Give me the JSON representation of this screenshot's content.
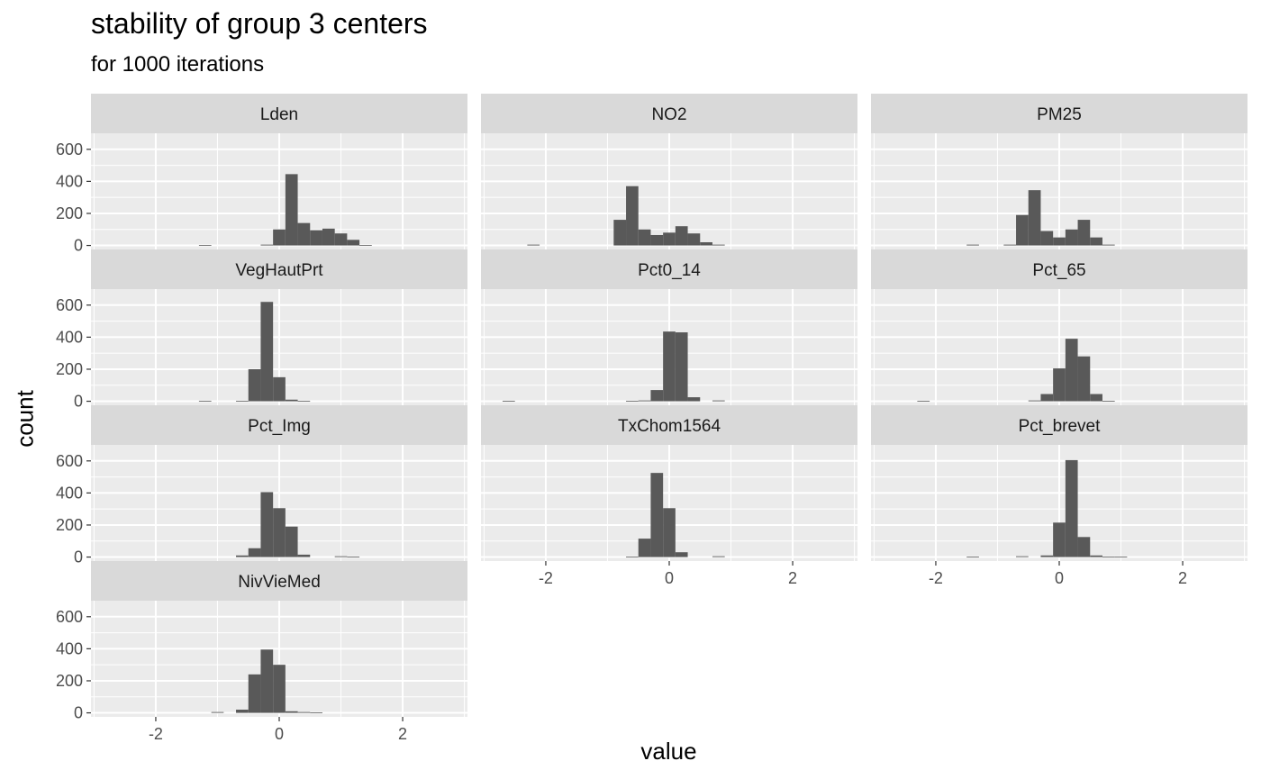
{
  "chart_data": {
    "type": "bar",
    "title": "stability of group 3 centers",
    "subtitle": "for 1000 iterations",
    "xlabel": "value",
    "ylabel": "count",
    "xlim": [
      -3.05,
      3.05
    ],
    "ylim": [
      -25,
      700
    ],
    "x_ticks": [
      -2,
      0,
      2
    ],
    "y_ticks": [
      0,
      200,
      400,
      600
    ],
    "bin_width": 0.2,
    "grid": true,
    "panels": [
      {
        "name": "Lden",
        "bins": [
          {
            "x": -1.2,
            "count": 3
          },
          {
            "x": -0.2,
            "count": 5
          },
          {
            "x": 0.0,
            "count": 100
          },
          {
            "x": 0.2,
            "count": 445
          },
          {
            "x": 0.4,
            "count": 140
          },
          {
            "x": 0.6,
            "count": 95
          },
          {
            "x": 0.8,
            "count": 105
          },
          {
            "x": 1.0,
            "count": 75
          },
          {
            "x": 1.2,
            "count": 35
          },
          {
            "x": 1.4,
            "count": 3
          }
        ]
      },
      {
        "name": "NO2",
        "bins": [
          {
            "x": -2.2,
            "count": 5
          },
          {
            "x": -0.8,
            "count": 160
          },
          {
            "x": -0.6,
            "count": 370
          },
          {
            "x": -0.4,
            "count": 100
          },
          {
            "x": -0.2,
            "count": 65
          },
          {
            "x": 0.0,
            "count": 80
          },
          {
            "x": 0.2,
            "count": 120
          },
          {
            "x": 0.4,
            "count": 75
          },
          {
            "x": 0.6,
            "count": 20
          },
          {
            "x": 0.8,
            "count": 5
          }
        ]
      },
      {
        "name": "PM25",
        "bins": [
          {
            "x": -1.4,
            "count": 5
          },
          {
            "x": -0.8,
            "count": 5
          },
          {
            "x": -0.6,
            "count": 190
          },
          {
            "x": -0.4,
            "count": 345
          },
          {
            "x": -0.2,
            "count": 90
          },
          {
            "x": 0.0,
            "count": 50
          },
          {
            "x": 0.2,
            "count": 100
          },
          {
            "x": 0.4,
            "count": 160
          },
          {
            "x": 0.6,
            "count": 50
          },
          {
            "x": 0.8,
            "count": 5
          }
        ]
      },
      {
        "name": "VegHautPrt",
        "bins": [
          {
            "x": -1.2,
            "count": 3
          },
          {
            "x": -0.6,
            "count": 3
          },
          {
            "x": -0.4,
            "count": 200
          },
          {
            "x": -0.2,
            "count": 620
          },
          {
            "x": 0.0,
            "count": 150
          },
          {
            "x": 0.2,
            "count": 10
          },
          {
            "x": 0.4,
            "count": 3
          }
        ]
      },
      {
        "name": "Pct0_14",
        "bins": [
          {
            "x": -2.6,
            "count": 2
          },
          {
            "x": -0.6,
            "count": 3
          },
          {
            "x": -0.4,
            "count": 5
          },
          {
            "x": -0.2,
            "count": 70
          },
          {
            "x": 0.0,
            "count": 435
          },
          {
            "x": 0.2,
            "count": 430
          },
          {
            "x": 0.4,
            "count": 25
          },
          {
            "x": 0.8,
            "count": 5
          }
        ]
      },
      {
        "name": "Pct_65",
        "bins": [
          {
            "x": -2.2,
            "count": 3
          },
          {
            "x": -0.4,
            "count": 5
          },
          {
            "x": -0.2,
            "count": 45
          },
          {
            "x": 0.0,
            "count": 205
          },
          {
            "x": 0.2,
            "count": 390
          },
          {
            "x": 0.4,
            "count": 280
          },
          {
            "x": 0.6,
            "count": 45
          },
          {
            "x": 0.8,
            "count": 3
          }
        ]
      },
      {
        "name": "Pct_Img",
        "bins": [
          {
            "x": -0.6,
            "count": 10
          },
          {
            "x": -0.4,
            "count": 55
          },
          {
            "x": -0.2,
            "count": 405
          },
          {
            "x": 0.0,
            "count": 305
          },
          {
            "x": 0.2,
            "count": 190
          },
          {
            "x": 0.4,
            "count": 15
          },
          {
            "x": 1.0,
            "count": 5
          },
          {
            "x": 1.2,
            "count": 3
          }
        ]
      },
      {
        "name": "TxChom1564",
        "bins": [
          {
            "x": -0.6,
            "count": 3
          },
          {
            "x": -0.4,
            "count": 115
          },
          {
            "x": -0.2,
            "count": 525
          },
          {
            "x": 0.0,
            "count": 305
          },
          {
            "x": 0.2,
            "count": 30
          },
          {
            "x": 0.8,
            "count": 5
          }
        ]
      },
      {
        "name": "Pct_brevet",
        "bins": [
          {
            "x": -1.4,
            "count": 3
          },
          {
            "x": -0.6,
            "count": 5
          },
          {
            "x": -0.2,
            "count": 10
          },
          {
            "x": 0.0,
            "count": 215
          },
          {
            "x": 0.2,
            "count": 605
          },
          {
            "x": 0.4,
            "count": 125
          },
          {
            "x": 0.6,
            "count": 10
          },
          {
            "x": 0.8,
            "count": 3
          },
          {
            "x": 1.0,
            "count": 3
          }
        ]
      },
      {
        "name": "NivVieMed",
        "bins": [
          {
            "x": -1.0,
            "count": 5
          },
          {
            "x": -0.6,
            "count": 20
          },
          {
            "x": -0.4,
            "count": 240
          },
          {
            "x": -0.2,
            "count": 395
          },
          {
            "x": 0.0,
            "count": 300
          },
          {
            "x": 0.2,
            "count": 10
          },
          {
            "x": 0.4,
            "count": 5
          },
          {
            "x": 0.6,
            "count": 3
          }
        ]
      }
    ],
    "colors": {
      "panel_bg": "#ebebeb",
      "strip_bg": "#d9d9d9",
      "grid_major": "#ffffff",
      "bar_fill": "#595959",
      "axis_text": "#4d4d4d",
      "strip_text": "#1a1a1a"
    }
  }
}
